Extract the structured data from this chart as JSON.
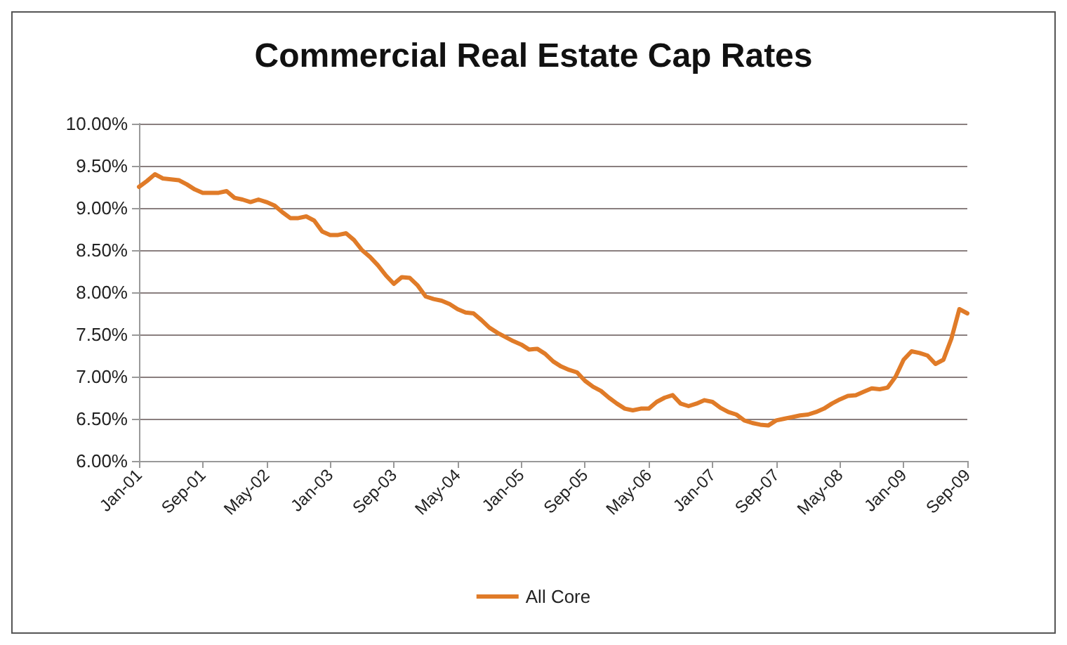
{
  "chart_data": {
    "type": "line",
    "title": "Commercial Real Estate Cap Rates",
    "categories": [
      "Jan-01",
      null,
      null,
      null,
      null,
      null,
      null,
      null,
      "Sep-01",
      null,
      null,
      null,
      null,
      null,
      null,
      null,
      "May-02",
      null,
      null,
      null,
      null,
      null,
      null,
      null,
      "Jan-03",
      null,
      null,
      null,
      null,
      null,
      null,
      null,
      "Sep-03",
      null,
      null,
      null,
      null,
      null,
      null,
      null,
      "May-04",
      null,
      null,
      null,
      null,
      null,
      null,
      null,
      "Jan-05",
      null,
      null,
      null,
      null,
      null,
      null,
      null,
      "Sep-05",
      null,
      null,
      null,
      null,
      null,
      null,
      null,
      "May-06",
      null,
      null,
      null,
      null,
      null,
      null,
      null,
      "Jan-07",
      null,
      null,
      null,
      null,
      null,
      null,
      null,
      "Sep-07",
      null,
      null,
      null,
      null,
      null,
      null,
      null,
      "May-08",
      null,
      null,
      null,
      null,
      null,
      null,
      null,
      "Jan-09",
      null,
      null,
      null,
      null,
      null,
      null,
      null,
      "Sep-09"
    ],
    "series": [
      {
        "name": "All Core",
        "color": "#e07b28",
        "values": [
          9.25,
          9.32,
          9.4,
          9.35,
          9.34,
          9.33,
          9.28,
          9.22,
          9.18,
          9.18,
          9.18,
          9.2,
          9.12,
          9.1,
          9.07,
          9.1,
          9.07,
          9.03,
          8.95,
          8.88,
          8.88,
          8.9,
          8.85,
          8.72,
          8.68,
          8.68,
          8.7,
          8.62,
          8.5,
          8.42,
          8.32,
          8.2,
          8.1,
          8.18,
          8.17,
          8.08,
          7.95,
          7.92,
          7.9,
          7.86,
          7.8,
          7.76,
          7.75,
          7.67,
          7.58,
          7.52,
          7.47,
          7.42,
          7.38,
          7.32,
          7.33,
          7.27,
          7.18,
          7.12,
          7.08,
          7.05,
          6.95,
          6.88,
          6.83,
          6.75,
          6.68,
          6.62,
          6.6,
          6.62,
          6.62,
          6.7,
          6.75,
          6.78,
          6.68,
          6.65,
          6.68,
          6.72,
          6.7,
          6.63,
          6.58,
          6.55,
          6.48,
          6.45,
          6.43,
          6.42,
          6.48,
          6.5,
          6.52,
          6.54,
          6.55,
          6.58,
          6.62,
          6.68,
          6.73,
          6.77,
          6.78,
          6.82,
          6.86,
          6.85,
          6.87,
          7.0,
          7.2,
          7.3,
          7.28,
          7.25,
          7.15,
          7.2,
          7.45,
          7.8,
          7.75
        ]
      }
    ],
    "ylim": [
      6,
      10
    ],
    "yticks": [
      {
        "value": 6,
        "label": "6.00%"
      },
      {
        "value": 6.5,
        "label": "6.50%"
      },
      {
        "value": 7,
        "label": "7.00%"
      },
      {
        "value": 7.5,
        "label": "7.50%"
      },
      {
        "value": 8,
        "label": "8.00%"
      },
      {
        "value": 8.5,
        "label": "8.50%"
      },
      {
        "value": 9,
        "label": "9.00%"
      },
      {
        "value": 9.5,
        "label": "9.50%"
      },
      {
        "value": 10,
        "label": "10.00%"
      }
    ],
    "grid": "y",
    "legend": "bottom",
    "marker": "none",
    "line_style": "solid"
  }
}
